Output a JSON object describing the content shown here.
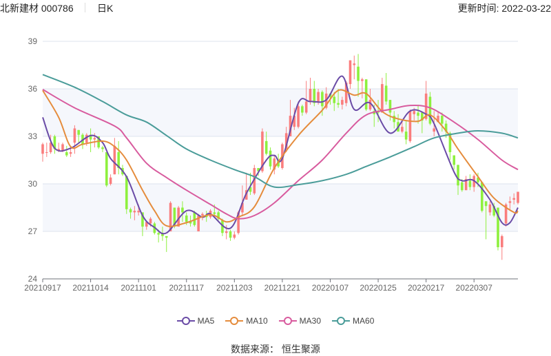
{
  "header": {
    "stock": "北新建材 000786",
    "period": "日K",
    "updated": "更新时间: 2022-03-22"
  },
  "source": "数据来源： 恒生聚源",
  "colors": {
    "up": "#fa7d7d",
    "down": "#8ef03e",
    "MA5": "#6a4ba6",
    "MA10": "#e58c3c",
    "MA30": "#d85b9e",
    "MA60": "#4a9c99",
    "band": "#f5f7fc",
    "grid": "#dde3ee"
  },
  "chart_data": {
    "type": "candlestick",
    "ylim": [
      24,
      39
    ],
    "yticks": [
      24,
      27,
      30,
      33,
      36,
      39
    ],
    "xtick_labels": [
      "20210917",
      "20211014",
      "20211101",
      "20211117",
      "20211203",
      "20211221",
      "20220107",
      "20220125",
      "20220217",
      "20220307"
    ],
    "legend": [
      "MA5",
      "MA10",
      "MA30",
      "MA60"
    ],
    "legend_position": "bottom",
    "candle_fields": [
      "date",
      "open",
      "close",
      "low",
      "high"
    ],
    "candles": [
      [
        "20210917",
        31.9,
        32.5,
        31.4,
        32.6
      ],
      [
        "20210922",
        32.0,
        32.0,
        31.7,
        32.6
      ],
      [
        "20210923",
        32.0,
        32.6,
        31.9,
        33.1
      ],
      [
        "20210924",
        33.0,
        32.2,
        31.9,
        33.1
      ],
      [
        "20210927",
        32.1,
        32.2,
        32.0,
        32.6
      ],
      [
        "20210928",
        32.1,
        32.5,
        32.0,
        32.6
      ],
      [
        "20210929",
        32.0,
        31.8,
        31.7,
        32.4
      ],
      [
        "20210930",
        31.9,
        32.0,
        31.7,
        32.3
      ],
      [
        "20211008",
        32.6,
        33.5,
        31.9,
        33.7
      ],
      [
        "20211011",
        33.4,
        33.1,
        32.6,
        33.4
      ],
      [
        "20211012",
        33.1,
        32.5,
        32.2,
        33.2
      ],
      [
        "20211013",
        32.6,
        33.1,
        32.4,
        33.2
      ],
      [
        "20211014",
        33.1,
        32.8,
        32.0,
        33.5
      ],
      [
        "20211015",
        32.8,
        32.9,
        32.3,
        33.2
      ],
      [
        "20211018",
        33.0,
        32.3,
        32.2,
        33.0
      ],
      [
        "20211019",
        32.3,
        32.2,
        32.0,
        32.4
      ],
      [
        "20211020",
        32.0,
        29.9,
        29.8,
        32.0
      ],
      [
        "20211021",
        30.0,
        30.4,
        29.9,
        30.6
      ],
      [
        "20211022",
        30.6,
        32.4,
        30.6,
        32.9
      ],
      [
        "20211025",
        32.0,
        31.0,
        30.6,
        32.7
      ],
      [
        "20211026",
        31.0,
        30.6,
        30.5,
        31.2
      ],
      [
        "20211027",
        30.5,
        28.4,
        28.1,
        30.5
      ],
      [
        "20211028",
        28.4,
        28.2,
        27.8,
        28.5
      ],
      [
        "20211029",
        28.2,
        28.3,
        27.7,
        28.6
      ],
      [
        "20211101",
        28.2,
        28.3,
        28.0,
        28.7
      ],
      [
        "20211102",
        28.2,
        27.3,
        26.7,
        28.2
      ],
      [
        "20211103",
        27.3,
        27.6,
        27.1,
        27.6
      ],
      [
        "20211104",
        27.5,
        27.8,
        27.3,
        27.9
      ],
      [
        "20211105",
        27.5,
        26.9,
        26.8,
        27.6
      ],
      [
        "20211108",
        26.9,
        26.8,
        26.3,
        27.1
      ],
      [
        "20211109",
        26.9,
        26.7,
        26.4,
        27.3
      ],
      [
        "20211110",
        26.7,
        26.6,
        25.7,
        26.7
      ],
      [
        "20211111",
        27.0,
        28.8,
        27.0,
        28.9
      ],
      [
        "20211112",
        28.5,
        27.4,
        27.2,
        28.5
      ],
      [
        "20211115",
        27.3,
        28.5,
        27.3,
        28.6
      ],
      [
        "20211116",
        28.5,
        28.2,
        27.6,
        28.9
      ],
      [
        "20211117",
        28.0,
        27.6,
        27.4,
        28.2
      ],
      [
        "20211118",
        27.6,
        27.5,
        27.3,
        28.0
      ],
      [
        "20211119",
        28.2,
        27.4,
        27.3,
        28.3
      ],
      [
        "20211122",
        27.0,
        28.0,
        27.0,
        28.1
      ],
      [
        "20211123",
        28.0,
        28.1,
        27.7,
        28.2
      ],
      [
        "20211124",
        28.0,
        27.9,
        27.6,
        28.3
      ],
      [
        "20211125",
        27.9,
        28.3,
        27.8,
        28.4
      ],
      [
        "20211126",
        28.2,
        28.1,
        27.9,
        28.7
      ],
      [
        "20211129",
        28.2,
        27.8,
        27.7,
        28.3
      ],
      [
        "20211130",
        27.7,
        26.9,
        26.7,
        27.8
      ],
      [
        "20211201",
        26.9,
        27.0,
        26.5,
        27.4
      ],
      [
        "20211202",
        27.0,
        26.6,
        26.4,
        27.1
      ],
      [
        "20211203",
        26.6,
        26.8,
        26.5,
        27.0
      ],
      [
        "20211206",
        26.9,
        28.2,
        26.8,
        28.3
      ],
      [
        "20211207",
        28.2,
        28.8,
        28.0,
        29.9
      ],
      [
        "20211208",
        29.0,
        29.6,
        29.0,
        30.7
      ],
      [
        "20211209",
        29.8,
        29.5,
        29.3,
        30.7
      ],
      [
        "20211210",
        29.4,
        31.0,
        29.3,
        31.2
      ],
      [
        "20211213",
        31.0,
        30.8,
        30.5,
        31.0
      ],
      [
        "20211214",
        30.8,
        33.3,
        30.7,
        33.5
      ],
      [
        "20211215",
        32.7,
        31.9,
        31.8,
        33.3
      ],
      [
        "20211216",
        32.1,
        31.1,
        30.9,
        32.3
      ],
      [
        "20211217",
        30.9,
        31.6,
        30.6,
        31.8
      ],
      [
        "20211220",
        31.5,
        31.1,
        31.0,
        31.9
      ],
      [
        "20211221",
        31.0,
        32.5,
        30.9,
        32.6
      ],
      [
        "20211222",
        32.2,
        33.2,
        32.0,
        33.6
      ],
      [
        "20211223",
        33.0,
        34.3,
        33.0,
        35.3
      ],
      [
        "20211224",
        33.6,
        34.3,
        33.4,
        34.8
      ],
      [
        "20211227",
        33.6,
        34.9,
        33.5,
        35.2
      ],
      [
        "20211228",
        34.9,
        34.5,
        34.3,
        35.0
      ],
      [
        "20211229",
        34.5,
        35.2,
        34.4,
        36.5
      ],
      [
        "20211230",
        35.2,
        36.0,
        35.0,
        36.7
      ],
      [
        "20211231",
        36.0,
        35.1,
        34.9,
        36.5
      ],
      [
        "20220104",
        35.2,
        35.8,
        35.0,
        36.0
      ],
      [
        "20220105",
        35.8,
        34.9,
        34.3,
        35.9
      ],
      [
        "20220106",
        34.8,
        35.7,
        34.7,
        36.1
      ],
      [
        "20220107",
        35.7,
        35.5,
        35.0,
        35.7
      ],
      [
        "20220110",
        35.5,
        35.1,
        34.6,
        35.8
      ],
      [
        "20220111",
        35.1,
        35.0,
        34.8,
        36.0
      ],
      [
        "20220112",
        35.0,
        35.3,
        34.7,
        35.5
      ],
      [
        "20220113",
        35.1,
        36.4,
        34.9,
        36.5
      ],
      [
        "20220114",
        36.3,
        37.8,
        36.0,
        37.8
      ],
      [
        "20220117",
        37.5,
        37.6,
        36.6,
        38.1
      ],
      [
        "20220118",
        37.4,
        36.5,
        35.5,
        38.2
      ],
      [
        "20220119",
        36.5,
        36.6,
        35.4,
        36.7
      ],
      [
        "20220120",
        36.6,
        34.7,
        34.6,
        36.6
      ],
      [
        "20220121",
        34.7,
        35.3,
        34.6,
        36.0
      ],
      [
        "20220124",
        34.6,
        34.4,
        33.6,
        35.0
      ],
      [
        "20220125",
        34.6,
        34.5,
        33.9,
        35.3
      ],
      [
        "20220126",
        34.5,
        36.3,
        34.5,
        36.7
      ],
      [
        "20220127",
        36.2,
        35.2,
        35.0,
        37.0
      ],
      [
        "20220128",
        35.3,
        34.5,
        34.0,
        35.3
      ],
      [
        "20220207",
        34.3,
        33.9,
        33.5,
        34.6
      ],
      [
        "20220208",
        33.9,
        33.3,
        33.3,
        34.4
      ],
      [
        "20220209",
        33.3,
        33.6,
        33.2,
        34.1
      ],
      [
        "20220210",
        33.3,
        32.8,
        32.5,
        34.0
      ],
      [
        "20220211",
        32.7,
        34.6,
        32.6,
        34.7
      ],
      [
        "20220214",
        34.4,
        34.6,
        34.0,
        34.8
      ],
      [
        "20220215",
        34.5,
        34.3,
        33.8,
        35.0
      ],
      [
        "20220216",
        34.5,
        34.0,
        33.2,
        34.4
      ],
      [
        "20220217",
        34.1,
        35.7,
        34.0,
        36.5
      ],
      [
        "20220218",
        35.5,
        33.8,
        33.7,
        35.8
      ],
      [
        "20220221",
        33.3,
        33.5,
        33.0,
        34.6
      ],
      [
        "20220222",
        33.9,
        34.3,
        33.9,
        34.6
      ],
      [
        "20220223",
        34.3,
        33.8,
        33.3,
        34.5
      ],
      [
        "20220224",
        33.8,
        33.3,
        32.9,
        34.0
      ],
      [
        "20220225",
        33.2,
        32.0,
        31.5,
        33.3
      ],
      [
        "20220228",
        31.8,
        31.2,
        30.9,
        31.8
      ],
      [
        "20220301",
        31.2,
        29.9,
        29.3,
        31.2
      ],
      [
        "20220302",
        30.1,
        29.6,
        29.5,
        30.3
      ],
      [
        "20220303",
        29.6,
        30.3,
        29.6,
        30.5
      ],
      [
        "20220304",
        30.2,
        29.8,
        29.6,
        30.6
      ],
      [
        "20220307",
        29.8,
        30.5,
        29.5,
        30.6
      ],
      [
        "20220308",
        30.4,
        30.1,
        29.8,
        30.7
      ],
      [
        "20220309",
        30.1,
        28.3,
        28.2,
        30.1
      ],
      [
        "20220310",
        28.9,
        28.6,
        26.5,
        28.9
      ],
      [
        "20220311",
        28.2,
        28.7,
        28.0,
        28.9
      ],
      [
        "20220314",
        28.6,
        28.0,
        27.9,
        28.8
      ],
      [
        "20220315",
        28.5,
        26.0,
        25.8,
        28.5
      ],
      [
        "20220316",
        26.0,
        26.7,
        25.2,
        26.8
      ],
      [
        "20220317",
        27.5,
        28.7,
        27.3,
        28.8
      ],
      [
        "20220318",
        28.8,
        28.9,
        28.4,
        29.2
      ],
      [
        "20220321",
        29.0,
        29.1,
        28.7,
        29.4
      ],
      [
        "20220322",
        28.8,
        29.5,
        28.7,
        29.5
      ]
    ],
    "series": [
      {
        "name": "MA5",
        "points": [
          [
            "20210917",
            34.2
          ],
          [
            "20210924",
            32.25
          ],
          [
            "20210930",
            32.25
          ],
          [
            "20211014",
            33.05
          ],
          [
            "20211019",
            32.6
          ],
          [
            "20211021",
            31.6
          ],
          [
            "20211027",
            30.45
          ],
          [
            "20211102",
            28.0
          ],
          [
            "20211105",
            27.25
          ],
          [
            "20211110",
            26.9
          ],
          [
            "20211117",
            28.3
          ],
          [
            "20211123",
            27.9
          ],
          [
            "20211125",
            28.1
          ],
          [
            "20211202",
            27.2
          ],
          [
            "20211208",
            29.4
          ],
          [
            "20211215",
            31.5
          ],
          [
            "20211217",
            31.8
          ],
          [
            "20211221",
            31.6
          ],
          [
            "20211227",
            35.1
          ],
          [
            "20211230",
            35.2
          ],
          [
            "20220106",
            35.3
          ],
          [
            "20220112",
            36.8
          ],
          [
            "20220117",
            34.7
          ],
          [
            "20220121",
            35.1
          ],
          [
            "20220128",
            33.2
          ],
          [
            "20220211",
            34.6
          ],
          [
            "20220217",
            34.4
          ],
          [
            "20220221",
            33.8
          ],
          [
            "20220228",
            30.75
          ],
          [
            "20220302",
            30.2
          ],
          [
            "20220307",
            30.2
          ],
          [
            "20220311",
            29.0
          ],
          [
            "20220316",
            27.55
          ],
          [
            "20220318",
            27.55
          ],
          [
            "20220322",
            28.5
          ]
        ]
      },
      {
        "name": "MA10",
        "points": [
          [
            "20210917",
            35.9
          ],
          [
            "20210927",
            34.2
          ],
          [
            "20210930",
            32.35
          ],
          [
            "20211012",
            32.5
          ],
          [
            "20211019",
            32.7
          ],
          [
            "20211022",
            32.35
          ],
          [
            "20211027",
            31.5
          ],
          [
            "20211102",
            29.6
          ],
          [
            "20211105",
            28.3
          ],
          [
            "20211110",
            27.35
          ],
          [
            "20211117",
            27.55
          ],
          [
            "20211125",
            28.05
          ],
          [
            "20211201",
            27.6
          ],
          [
            "20211206",
            27.9
          ],
          [
            "20211210",
            28.55
          ],
          [
            "20211217",
            31.0
          ],
          [
            "20211227",
            33.05
          ],
          [
            "20220105",
            34.65
          ],
          [
            "20220111",
            35.9
          ],
          [
            "20220117",
            35.6
          ],
          [
            "20220120",
            35.7
          ],
          [
            "20220126",
            34.57
          ],
          [
            "20220208",
            34.1
          ],
          [
            "20220215",
            33.95
          ],
          [
            "20220218",
            34.35
          ],
          [
            "20220224",
            33.35
          ],
          [
            "20220301",
            32.2
          ],
          [
            "20220308",
            30.45
          ],
          [
            "20220314",
            29.1
          ],
          [
            "20220321",
            28.2
          ],
          [
            "20220322",
            28.3
          ]
        ]
      },
      {
        "name": "MA30",
        "points": [
          [
            "20210917",
            35.96
          ],
          [
            "20211008",
            34.8
          ],
          [
            "20211022",
            33.65
          ],
          [
            "20211027",
            32.9
          ],
          [
            "20211103",
            31.3
          ],
          [
            "20211110",
            30.4
          ],
          [
            "20211117",
            29.6
          ],
          [
            "20211125",
            28.7
          ],
          [
            "20211201",
            28.1
          ],
          [
            "20211206",
            27.8
          ],
          [
            "20211210",
            28.0
          ],
          [
            "20211217",
            28.8
          ],
          [
            "20211227",
            30.2
          ],
          [
            "20220105",
            31.5
          ],
          [
            "20220113",
            33.2
          ],
          [
            "20220120",
            34.35
          ],
          [
            "20220128",
            34.7
          ],
          [
            "20220211",
            34.95
          ],
          [
            "20220218",
            34.8
          ],
          [
            "20220228",
            33.9
          ],
          [
            "20220308",
            32.8
          ],
          [
            "20220316",
            31.5
          ],
          [
            "20220322",
            30.9
          ]
        ]
      },
      {
        "name": "MA60",
        "points": [
          [
            "20210917",
            36.9
          ],
          [
            "20211008",
            36.1
          ],
          [
            "20211019",
            35.2
          ],
          [
            "20211027",
            34.35
          ],
          [
            "20211103",
            33.9
          ],
          [
            "20211110",
            33.05
          ],
          [
            "20211117",
            32.2
          ],
          [
            "20211125",
            31.5
          ],
          [
            "20211203",
            30.9
          ],
          [
            "20211210",
            30.45
          ],
          [
            "20211217",
            29.8
          ],
          [
            "20211227",
            29.95
          ],
          [
            "20220105",
            30.2
          ],
          [
            "20220113",
            30.6
          ],
          [
            "20220120",
            31.1
          ],
          [
            "20220128",
            31.7
          ],
          [
            "20220214",
            32.35
          ],
          [
            "20220221",
            32.9
          ],
          [
            "20220301",
            33.2
          ],
          [
            "20220308",
            33.35
          ],
          [
            "20220316",
            33.2
          ],
          [
            "20220322",
            32.9
          ]
        ]
      }
    ]
  }
}
